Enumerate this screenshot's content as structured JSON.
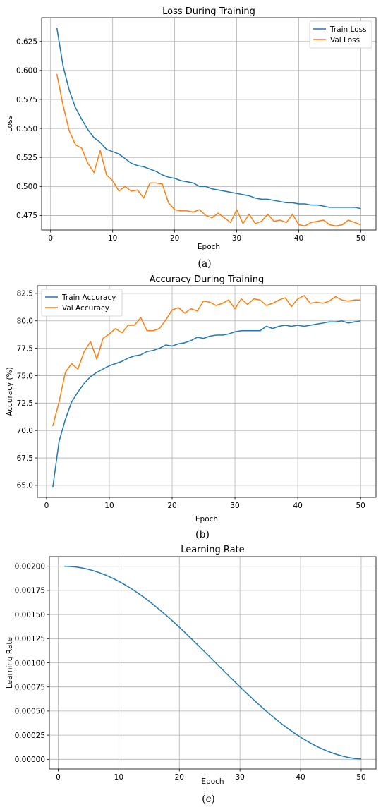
{
  "chart_data": [
    {
      "type": "line",
      "title": "Loss During Training",
      "xlabel": "Epoch",
      "ylabel": "Loss",
      "caption": "(a)",
      "xlim": [
        -1.45,
        52.45
      ],
      "ylim": [
        0.4625,
        0.6455
      ],
      "xticks": [
        0,
        10,
        20,
        30,
        40,
        50
      ],
      "yticks": [
        0.475,
        0.5,
        0.525,
        0.55,
        0.575,
        0.6,
        0.625
      ],
      "ytick_labels": [
        "0.475",
        "0.500",
        "0.525",
        "0.550",
        "0.575",
        "0.600",
        "0.625"
      ],
      "grid": true,
      "legend": "top-right",
      "series": [
        {
          "name": "Train Loss",
          "color": "#1f77b4",
          "values": [
            0.637,
            0.604,
            0.583,
            0.568,
            0.558,
            0.549,
            0.542,
            0.538,
            0.532,
            0.53,
            0.528,
            0.524,
            0.52,
            0.518,
            0.517,
            0.515,
            0.513,
            0.51,
            0.508,
            0.507,
            0.505,
            0.504,
            0.503,
            0.5,
            0.5,
            0.498,
            0.497,
            0.496,
            0.495,
            0.494,
            0.493,
            0.492,
            0.49,
            0.489,
            0.489,
            0.488,
            0.487,
            0.486,
            0.486,
            0.485,
            0.485,
            0.484,
            0.484,
            0.483,
            0.482,
            0.482,
            0.482,
            0.482,
            0.482,
            0.481
          ]
        },
        {
          "name": "Val Loss",
          "color": "#ff7f0e",
          "values": [
            0.597,
            0.57,
            0.548,
            0.536,
            0.533,
            0.52,
            0.512,
            0.531,
            0.51,
            0.505,
            0.496,
            0.5,
            0.496,
            0.497,
            0.49,
            0.503,
            0.503,
            0.502,
            0.486,
            0.48,
            0.479,
            0.479,
            0.478,
            0.48,
            0.475,
            0.473,
            0.477,
            0.473,
            0.469,
            0.48,
            0.468,
            0.476,
            0.468,
            0.47,
            0.476,
            0.47,
            0.471,
            0.469,
            0.476,
            0.467,
            0.466,
            0.469,
            0.47,
            0.471,
            0.467,
            0.466,
            0.467,
            0.471,
            0.469,
            0.467
          ]
        }
      ]
    },
    {
      "type": "line",
      "title": "Accuracy During Training",
      "xlabel": "Epoch",
      "ylabel": "Accuracy (%)",
      "caption": "(b)",
      "xlim": [
        -1.45,
        52.45
      ],
      "ylim": [
        63.9,
        83.2
      ],
      "xticks": [
        0,
        10,
        20,
        30,
        40,
        50
      ],
      "yticks": [
        65.0,
        67.5,
        70.0,
        72.5,
        75.0,
        77.5,
        80.0,
        82.5
      ],
      "ytick_labels": [
        "65.0",
        "67.5",
        "70.0",
        "72.5",
        "75.0",
        "77.5",
        "80.0",
        "82.5"
      ],
      "grid": true,
      "legend": "top-left",
      "series": [
        {
          "name": "Train Accuracy",
          "color": "#1f77b4",
          "values": [
            64.8,
            69.0,
            71.0,
            72.6,
            73.5,
            74.3,
            74.9,
            75.3,
            75.6,
            75.9,
            76.1,
            76.3,
            76.6,
            76.8,
            76.9,
            77.2,
            77.3,
            77.5,
            77.8,
            77.7,
            77.9,
            78.0,
            78.2,
            78.5,
            78.4,
            78.6,
            78.7,
            78.7,
            78.8,
            79.0,
            79.1,
            79.1,
            79.1,
            79.1,
            79.5,
            79.3,
            79.5,
            79.6,
            79.5,
            79.6,
            79.5,
            79.6,
            79.7,
            79.8,
            79.9,
            79.9,
            80.0,
            79.8,
            79.9,
            80.0
          ]
        },
        {
          "name": "Val Accuracy",
          "color": "#ff7f0e",
          "values": [
            70.4,
            72.6,
            75.3,
            76.1,
            75.6,
            77.2,
            78.1,
            76.5,
            78.4,
            78.8,
            79.3,
            78.9,
            79.6,
            79.6,
            80.3,
            79.1,
            79.1,
            79.3,
            80.1,
            81.0,
            81.2,
            80.7,
            81.1,
            80.9,
            81.8,
            81.7,
            81.4,
            81.6,
            81.9,
            81.1,
            82.0,
            81.5,
            82.0,
            81.9,
            81.4,
            81.6,
            81.9,
            82.1,
            81.3,
            82.0,
            82.3,
            81.6,
            81.7,
            81.6,
            81.8,
            82.2,
            81.9,
            81.8,
            81.9,
            81.9
          ]
        }
      ]
    },
    {
      "type": "line",
      "title": "Learning Rate",
      "xlabel": "Epoch",
      "ylabel": "Learning Rate",
      "caption": "(c)",
      "xlim": [
        -1.45,
        52.45
      ],
      "ylim": [
        -0.0001,
        0.0021
      ],
      "xticks": [
        0,
        10,
        20,
        30,
        40,
        50
      ],
      "yticks": [
        0.0,
        0.00025,
        0.0005,
        0.00075,
        0.001,
        0.00125,
        0.0015,
        0.00175,
        0.002
      ],
      "ytick_labels": [
        "0.00000",
        "0.00025",
        "0.00050",
        "0.00075",
        "0.00100",
        "0.00125",
        "0.00150",
        "0.00175",
        "0.00200"
      ],
      "grid": true,
      "legend": "none",
      "series": [
        {
          "color": "#1f77b4",
          "values": [
            0.002,
            0.001998,
            0.001992,
            0.001982,
            0.001968,
            0.00195,
            0.001929,
            0.001904,
            0.001876,
            0.001844,
            0.001809,
            0.001771,
            0.001729,
            0.001685,
            0.001638,
            0.001588,
            0.001536,
            0.001482,
            0.001426,
            0.001368,
            0.001309,
            0.001248,
            0.001187,
            0.001125,
            0.001063,
            0.001,
            0.000937,
            0.000875,
            0.000813,
            0.000752,
            0.000691,
            0.000632,
            0.000574,
            0.000518,
            0.000464,
            0.000412,
            0.000362,
            0.000315,
            0.000271,
            0.000229,
            0.000191,
            0.000156,
            0.000124,
            9.6e-05,
            7.1e-05,
            5e-05,
            3.2e-05,
            1.8e-05,
            8e-06,
            2e-06
          ]
        }
      ]
    }
  ]
}
